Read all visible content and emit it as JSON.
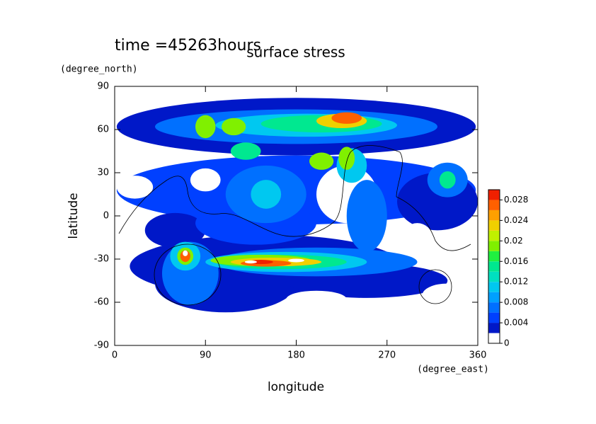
{
  "chart_data": {
    "type": "contour",
    "title": "surface stress",
    "subtitle": "time =45263hours",
    "xlabel": "longitude",
    "xunits": "(degree_east)",
    "ylabel": "latitude",
    "yunits": "(degree_north)",
    "xlim": [
      0,
      360
    ],
    "xticks": [
      0,
      90,
      180,
      270,
      360
    ],
    "ylim": [
      -90,
      90
    ],
    "yticks": [
      -90,
      -60,
      -30,
      0,
      30,
      60,
      90
    ],
    "clim": [
      0,
      0.03
    ],
    "cticks": [
      0,
      0.004,
      0.008,
      0.012,
      0.016,
      0.02,
      0.024,
      0.028
    ],
    "levels": [
      0,
      0.002,
      0.004,
      0.006,
      0.008,
      0.01,
      0.012,
      0.014,
      0.016,
      0.018,
      0.02,
      0.022,
      0.024,
      0.026,
      0.028
    ],
    "colors": [
      "#ffffff",
      "#0018c8",
      "#0040ff",
      "#0070ff",
      "#00a0ff",
      "#00c8f0",
      "#00e0c0",
      "#00e890",
      "#20f040",
      "#80f000",
      "#c0f000",
      "#f0d000",
      "#ffa000",
      "#ff6000",
      "#f02000"
    ]
  }
}
